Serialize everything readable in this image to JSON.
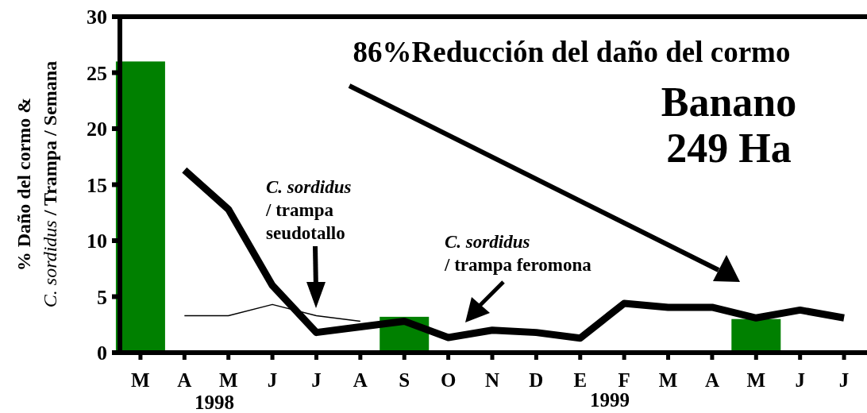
{
  "chart_data": {
    "type": "bar",
    "ylabel": "% Daño del cormo &\nC. sordidus / Trampa / Semana",
    "categories": [
      "M",
      "A",
      "M",
      "J",
      "J",
      "A",
      "S",
      "O",
      "N",
      "D",
      "E",
      "F",
      "M",
      "A",
      "M",
      "J",
      "J"
    ],
    "series": [
      {
        "color": "#008000",
        "values": [
          26,
          null,
          null,
          null,
          null,
          null,
          3.2,
          null,
          null,
          null,
          null,
          null,
          null,
          null,
          3,
          null,
          null
        ]
      },
      {
        "type": "line",
        "color": "#000000",
        "values": [
          null,
          16.3,
          12.8,
          6,
          1.8,
          2.3,
          2.8,
          1.35,
          2,
          1.8,
          1.3,
          4.4,
          4.05,
          4.05,
          3.1,
          3.8,
          3.1
        ]
      },
      {
        "type": "line",
        "color": "#000000",
        "values": [
          null,
          3.3,
          3.3,
          4.3,
          3.3,
          2.8,
          null,
          null,
          null,
          null,
          null,
          null,
          null,
          null,
          null,
          null,
          null
        ]
      }
    ],
    "ylim": [
      0,
      30
    ],
    "yticks": [
      0,
      5,
      10,
      15,
      20,
      25,
      30
    ],
    "grid": false,
    "annotations": [
      "86%Reducción del daño del cormo",
      "Banano\n249 Ha",
      "C. sordidus\n/ trampa\nseudotallo",
      "C. sordidus\n/ trampa feromona",
      "1998",
      "1999"
    ]
  }
}
